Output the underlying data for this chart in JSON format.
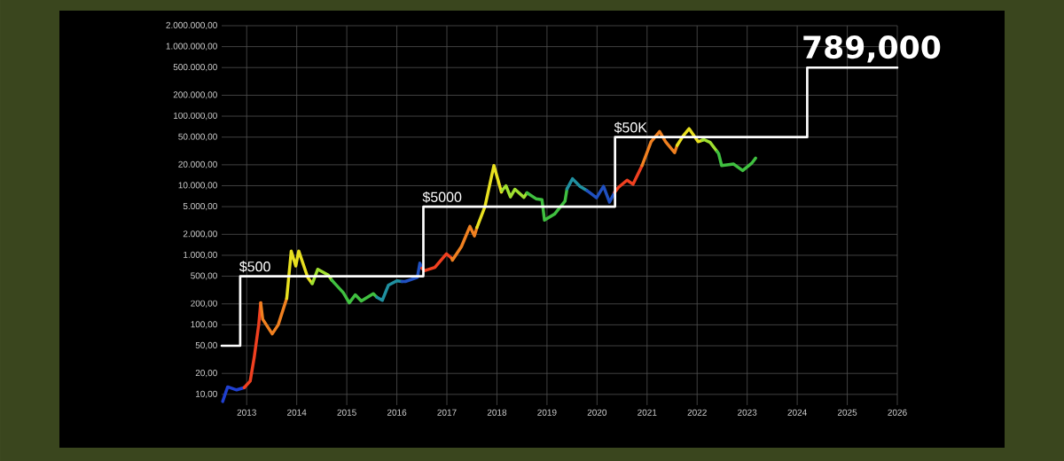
{
  "chart_data": {
    "type": "line",
    "xlim": [
      2012.5,
      2026
    ],
    "ylim": [
      7,
      2000000
    ],
    "log": "y",
    "grid": true,
    "marker": "none",
    "line_style": "solid",
    "xticks": [
      2013,
      2014,
      2015,
      2016,
      2017,
      2018,
      2019,
      2020,
      2021,
      2022,
      2023,
      2024,
      2025,
      2026
    ],
    "yticks": [
      {
        "value": 10,
        "label": "10,00"
      },
      {
        "value": 20,
        "label": "20,00"
      },
      {
        "value": 50,
        "label": "50,00"
      },
      {
        "value": 100,
        "label": "100,00"
      },
      {
        "value": 200,
        "label": "200,00"
      },
      {
        "value": 500,
        "label": "500,00"
      },
      {
        "value": 1000,
        "label": "1.000,00"
      },
      {
        "value": 2000,
        "label": "2.000,00"
      },
      {
        "value": 5000,
        "label": "5.000,00"
      },
      {
        "value": 10000,
        "label": "10.000,00"
      },
      {
        "value": 20000,
        "label": "20.000,00"
      },
      {
        "value": 50000,
        "label": "50.000,00"
      },
      {
        "value": 100000,
        "label": "100.000,00"
      },
      {
        "value": 200000,
        "label": "200.000,00"
      },
      {
        "value": 500000,
        "label": "500.000,00"
      },
      {
        "value": 1000000,
        "label": "1.000.000,00"
      },
      {
        "value": 2000000,
        "label": "2.000.000,00"
      }
    ],
    "series": [
      {
        "color": "#2040d0",
        "x": [
          2012.52,
          2012.62,
          2012.8,
          2012.95
        ],
        "values": [
          7.9,
          12.8,
          11.6,
          12.5
        ]
      },
      {
        "color": "#f04020",
        "x": [
          2012.95,
          2013.07,
          2013.15,
          2013.24,
          2013.28
        ],
        "values": [
          12.5,
          15.5,
          34,
          100,
          207
        ]
      },
      {
        "color": "#f08020",
        "x": [
          2013.28,
          2013.32,
          2013.51,
          2013.63,
          2013.8
        ],
        "values": [
          207,
          120,
          74,
          100,
          240
        ]
      },
      {
        "color": "#e8e020",
        "x": [
          2013.8,
          2013.89,
          2013.98,
          2014.04,
          2014.22,
          2014.3
        ],
        "values": [
          240,
          1150,
          700,
          1150,
          480,
          400
        ]
      },
      {
        "color": "#a0e030",
        "x": [
          2014.3,
          2014.31,
          2014.42,
          2014.63,
          2014.7
        ],
        "values": [
          400,
          390,
          630,
          520,
          440
        ]
      },
      {
        "color": "#40c040",
        "x": [
          2014.7,
          2014.75,
          2014.93,
          2015.05,
          2015.17,
          2015.29,
          2015.53,
          2015.6
        ],
        "values": [
          440,
          400,
          290,
          207,
          270,
          220,
          280,
          250
        ]
      },
      {
        "color": "#2090a0",
        "x": [
          2015.6,
          2015.71,
          2015.83,
          2016.0,
          2016.1
        ],
        "values": [
          250,
          225,
          370,
          430,
          420
        ]
      },
      {
        "color": "#2050c0",
        "x": [
          2016.1,
          2016.17,
          2016.41,
          2016.46,
          2016.5
        ],
        "values": [
          420,
          420,
          480,
          770,
          650
        ]
      },
      {
        "color": "#f04020",
        "x": [
          2016.5,
          2016.55,
          2016.76,
          2016.99,
          2017.1
        ],
        "values": [
          650,
          600,
          670,
          1050,
          900
        ]
      },
      {
        "color": "#f08020",
        "x": [
          2017.1,
          2017.11,
          2017.29,
          2017.46,
          2017.55,
          2017.6
        ],
        "values": [
          900,
          850,
          1330,
          2600,
          1900,
          2500
        ]
      },
      {
        "color": "#e8e020",
        "x": [
          2017.6,
          2017.76,
          2017.94,
          2018.09,
          2018.1
        ],
        "values": [
          2500,
          5000,
          19500,
          8100,
          8500
        ]
      },
      {
        "color": "#a0e030",
        "x": [
          2018.1,
          2018.18,
          2018.27,
          2018.36,
          2018.54,
          2018.6
        ],
        "values": [
          8500,
          10000,
          6900,
          8900,
          6800,
          7900
        ]
      },
      {
        "color": "#40c040",
        "x": [
          2018.6,
          2018.78,
          2018.9,
          2018.95,
          2019.15,
          2019.36,
          2019.4
        ],
        "values": [
          7900,
          6500,
          6300,
          3200,
          3900,
          6000,
          9000
        ]
      },
      {
        "color": "#2090a0",
        "x": [
          2019.4,
          2019.51,
          2019.66,
          2019.8
        ],
        "values": [
          9000,
          12600,
          9800,
          8500
        ]
      },
      {
        "color": "#2050c0",
        "x": [
          2019.8,
          2019.84,
          2019.99,
          2020.13,
          2020.25,
          2020.35
        ],
        "values": [
          8500,
          8100,
          6700,
          9800,
          5800,
          8000
        ]
      },
      {
        "color": "#f04020",
        "x": [
          2020.35,
          2020.43,
          2020.6,
          2020.72,
          2020.9
        ],
        "values": [
          8000,
          9500,
          12000,
          10500,
          19500
        ]
      },
      {
        "color": "#f08020",
        "x": [
          2020.9,
          2021.08,
          2021.25,
          2021.37,
          2021.55,
          2021.6
        ],
        "values": [
          19500,
          43000,
          60000,
          43000,
          30000,
          38000
        ]
      },
      {
        "color": "#e8e020",
        "x": [
          2021.6,
          2021.72,
          2021.84,
          2022.02,
          2022.1
        ],
        "values": [
          38000,
          52000,
          66000,
          43000,
          45000
        ]
      },
      {
        "color": "#a0e030",
        "x": [
          2022.1,
          2022.14,
          2022.26,
          2022.4
        ],
        "values": [
          45000,
          46000,
          42000,
          31000
        ]
      },
      {
        "color": "#40c040",
        "x": [
          2022.4,
          2022.43,
          2022.49,
          2022.73,
          2022.91,
          2023.09,
          2023.17
        ],
        "values": [
          31000,
          29000,
          19500,
          20500,
          16500,
          21000,
          25000
        ]
      },
      {
        "type": "step",
        "color": "#ffffff",
        "x": [
          2012.5,
          2012.87,
          2016.53,
          2020.36,
          2024.2,
          2026
        ],
        "values": [
          50,
          500,
          5000,
          50000,
          500000,
          500000
        ]
      }
    ],
    "annotations": [
      {
        "text": "$500",
        "x": 2012.87,
        "y": 500
      },
      {
        "text": "$5000",
        "x": 2016.53,
        "y": 5000
      },
      {
        "text": "$50K",
        "x": 2020.36,
        "y": 50000
      },
      {
        "text": "789,000",
        "x": 2024.2,
        "y": 500000
      }
    ]
  }
}
